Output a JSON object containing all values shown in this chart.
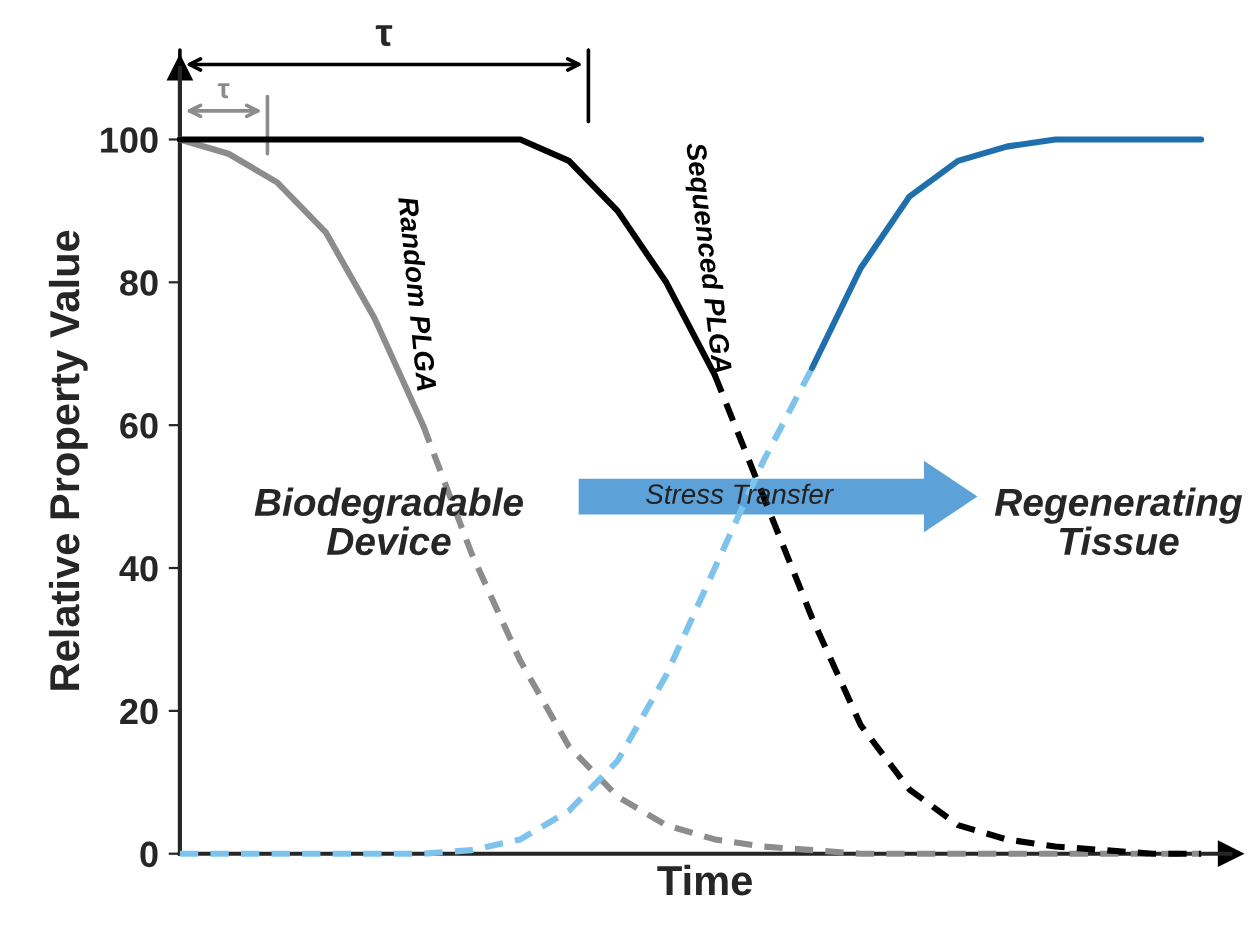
{
  "chart_data": {
    "type": "line",
    "xlabel": "Time",
    "ylabel": "Relative Property Value",
    "categories": [
      null,
      null,
      null,
      null,
      null,
      null,
      null,
      null,
      null,
      null,
      null,
      null,
      null,
      null,
      null,
      null,
      null,
      null,
      null,
      null,
      null,
      null
    ],
    "ylim": [
      0,
      110
    ],
    "yticks": [
      0,
      20,
      40,
      60,
      80,
      100
    ],
    "grid": false,
    "legend": false,
    "marker": "none",
    "series": [
      {
        "name": "Random PLGA",
        "color": "#8c8c8c",
        "line_style": "solid",
        "values": [
          100,
          98,
          94,
          87,
          75,
          60,
          null,
          null,
          null,
          null,
          null,
          null,
          null,
          null,
          null,
          null,
          null,
          null,
          null,
          null,
          null,
          null
        ]
      },
      {
        "color": "#8c8c8c",
        "line_style": "dashed",
        "values": [
          null,
          null,
          null,
          null,
          null,
          60,
          42,
          27,
          15,
          8,
          4,
          2,
          1,
          0.5,
          0,
          0,
          0,
          0,
          0,
          0,
          0,
          0
        ]
      },
      {
        "name": "Sequenced PLGA",
        "color": "#000000",
        "line_style": "solid",
        "values": [
          100,
          100,
          100,
          100,
          100,
          100,
          100,
          100,
          97,
          90,
          80,
          67,
          null,
          null,
          null,
          null,
          null,
          null,
          null,
          null,
          null,
          null
        ]
      },
      {
        "color": "#000000",
        "line_style": "dashed",
        "values": [
          null,
          null,
          null,
          null,
          null,
          null,
          null,
          null,
          null,
          null,
          null,
          67,
          50,
          33,
          18,
          9,
          4,
          2,
          1,
          0.5,
          0,
          0
        ]
      },
      {
        "color": "#7ec3ec",
        "line_style": "dashed",
        "values": [
          0,
          0,
          0,
          0,
          0,
          0,
          0.5,
          2,
          6,
          13,
          25,
          40,
          55,
          68,
          null,
          null,
          null,
          null,
          null,
          null,
          null,
          null
        ]
      },
      {
        "color": "#1f6fad",
        "line_style": "solid",
        "values": [
          null,
          null,
          null,
          null,
          null,
          null,
          null,
          null,
          null,
          null,
          null,
          null,
          null,
          68,
          82,
          92,
          97,
          99,
          100,
          100,
          100,
          100
        ]
      }
    ],
    "annotations": [
      "τ",
      "τ",
      "Biodegradable Device",
      "Stress Transfer",
      "Regenerating Tissue"
    ]
  }
}
